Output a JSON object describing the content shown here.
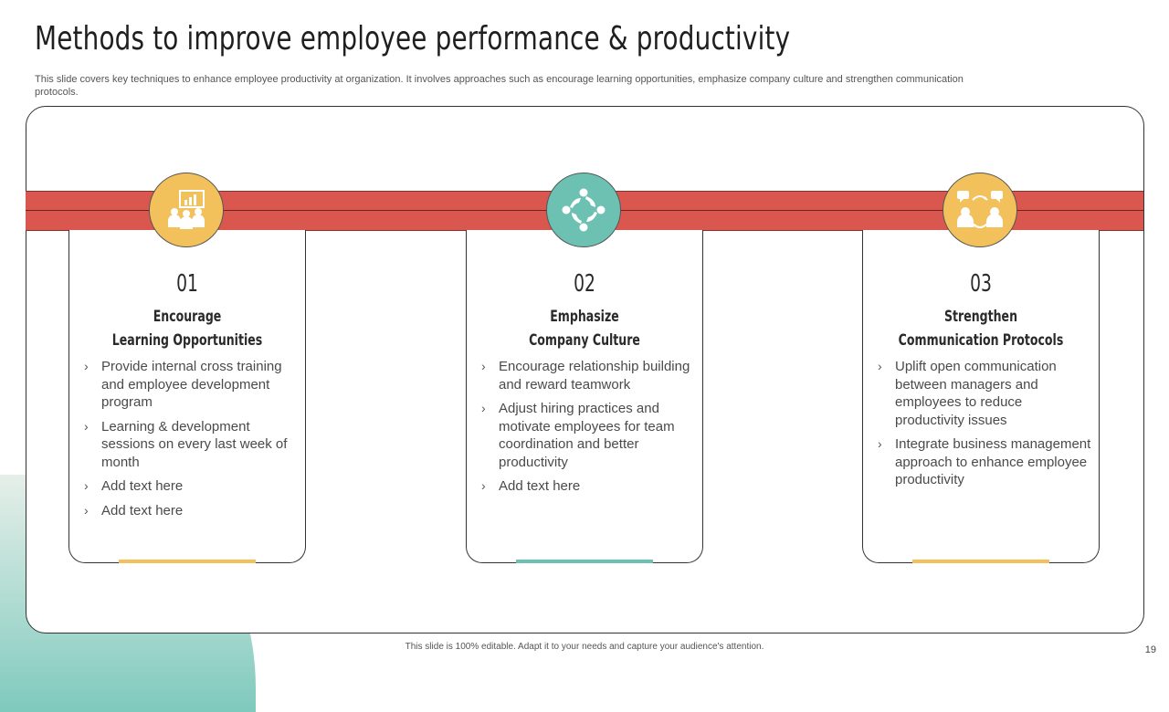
{
  "slide": {
    "title": "Methods to improve employee performance & productivity",
    "subtitle": "This slide covers key techniques to enhance employee productivity at organization. It involves approaches such as encourage learning opportunities, emphasize company culture and strengthen communication protocols.",
    "footer": "This slide is 100% editable.  Adapt it to your needs and capture your audience's attention.",
    "page_number": "19"
  },
  "colors": {
    "band": "#d9574f",
    "yellow": "#f2c15c",
    "teal": "#6cc1b3"
  },
  "cards": [
    {
      "number": "01",
      "heading_line1": "Encourage",
      "heading_line2": "Learning Opportunities",
      "icon": "presentation-audience-icon",
      "bullets": [
        "Provide internal cross training and employee development program",
        "Learning & development sessions on every last week of month",
        "Add text here",
        "Add text here"
      ]
    },
    {
      "number": "02",
      "heading_line1": "Emphasize",
      "heading_line2": "Company Culture",
      "icon": "team-collaboration-icon",
      "bullets": [
        "Encourage relationship building and reward teamwork",
        "Adjust hiring practices and motivate employees for team coordination and better productivity",
        "Add text here"
      ]
    },
    {
      "number": "03",
      "heading_line1": "Strengthen",
      "heading_line2": "Communication Protocols",
      "icon": "communication-exchange-icon",
      "bullets": [
        "Uplift open communication between managers and employees to reduce productivity issues",
        "Integrate business management approach to enhance employee productivity"
      ]
    }
  ]
}
